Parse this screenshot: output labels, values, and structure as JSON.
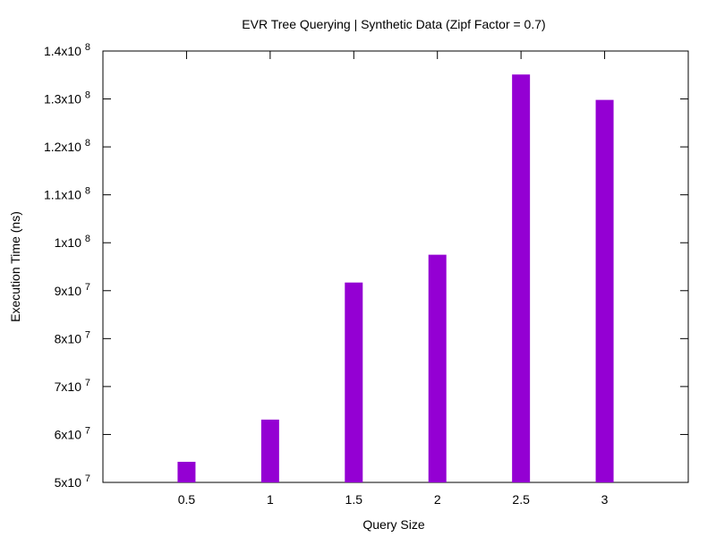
{
  "chart_data": {
    "type": "bar",
    "title": "EVR Tree Querying | Synthetic Data (Zipf Factor = 0.7)",
    "xlabel": "Query Size",
    "ylabel": "Execution Time (ns)",
    "x": [
      0.5,
      1,
      1.5,
      2,
      2.5,
      3
    ],
    "x_tick_labels": [
      "0.5",
      "1",
      "1.5",
      "2",
      "2.5",
      "3"
    ],
    "values": [
      54300000,
      63100000,
      91700000,
      97500000,
      135100000,
      129800000
    ],
    "xlim": [
      0,
      3.5
    ],
    "ylim": [
      50000000,
      140000000
    ],
    "y_ticks": [
      {
        "value": 50000000,
        "mantissa": "5x10",
        "exp": "7"
      },
      {
        "value": 60000000,
        "mantissa": "6x10",
        "exp": "7"
      },
      {
        "value": 70000000,
        "mantissa": "7x10",
        "exp": "7"
      },
      {
        "value": 80000000,
        "mantissa": "8x10",
        "exp": "7"
      },
      {
        "value": 90000000,
        "mantissa": "9x10",
        "exp": "7"
      },
      {
        "value": 100000000,
        "mantissa": "1x10",
        "exp": "8"
      },
      {
        "value": 110000000,
        "mantissa": "1.1x10",
        "exp": "8"
      },
      {
        "value": 120000000,
        "mantissa": "1.2x10",
        "exp": "8"
      },
      {
        "value": 130000000,
        "mantissa": "1.3x10",
        "exp": "8"
      },
      {
        "value": 140000000,
        "mantissa": "1.4x10",
        "exp": "8"
      }
    ],
    "bar_color": "#9400d3",
    "grid": false,
    "legend": "none"
  }
}
